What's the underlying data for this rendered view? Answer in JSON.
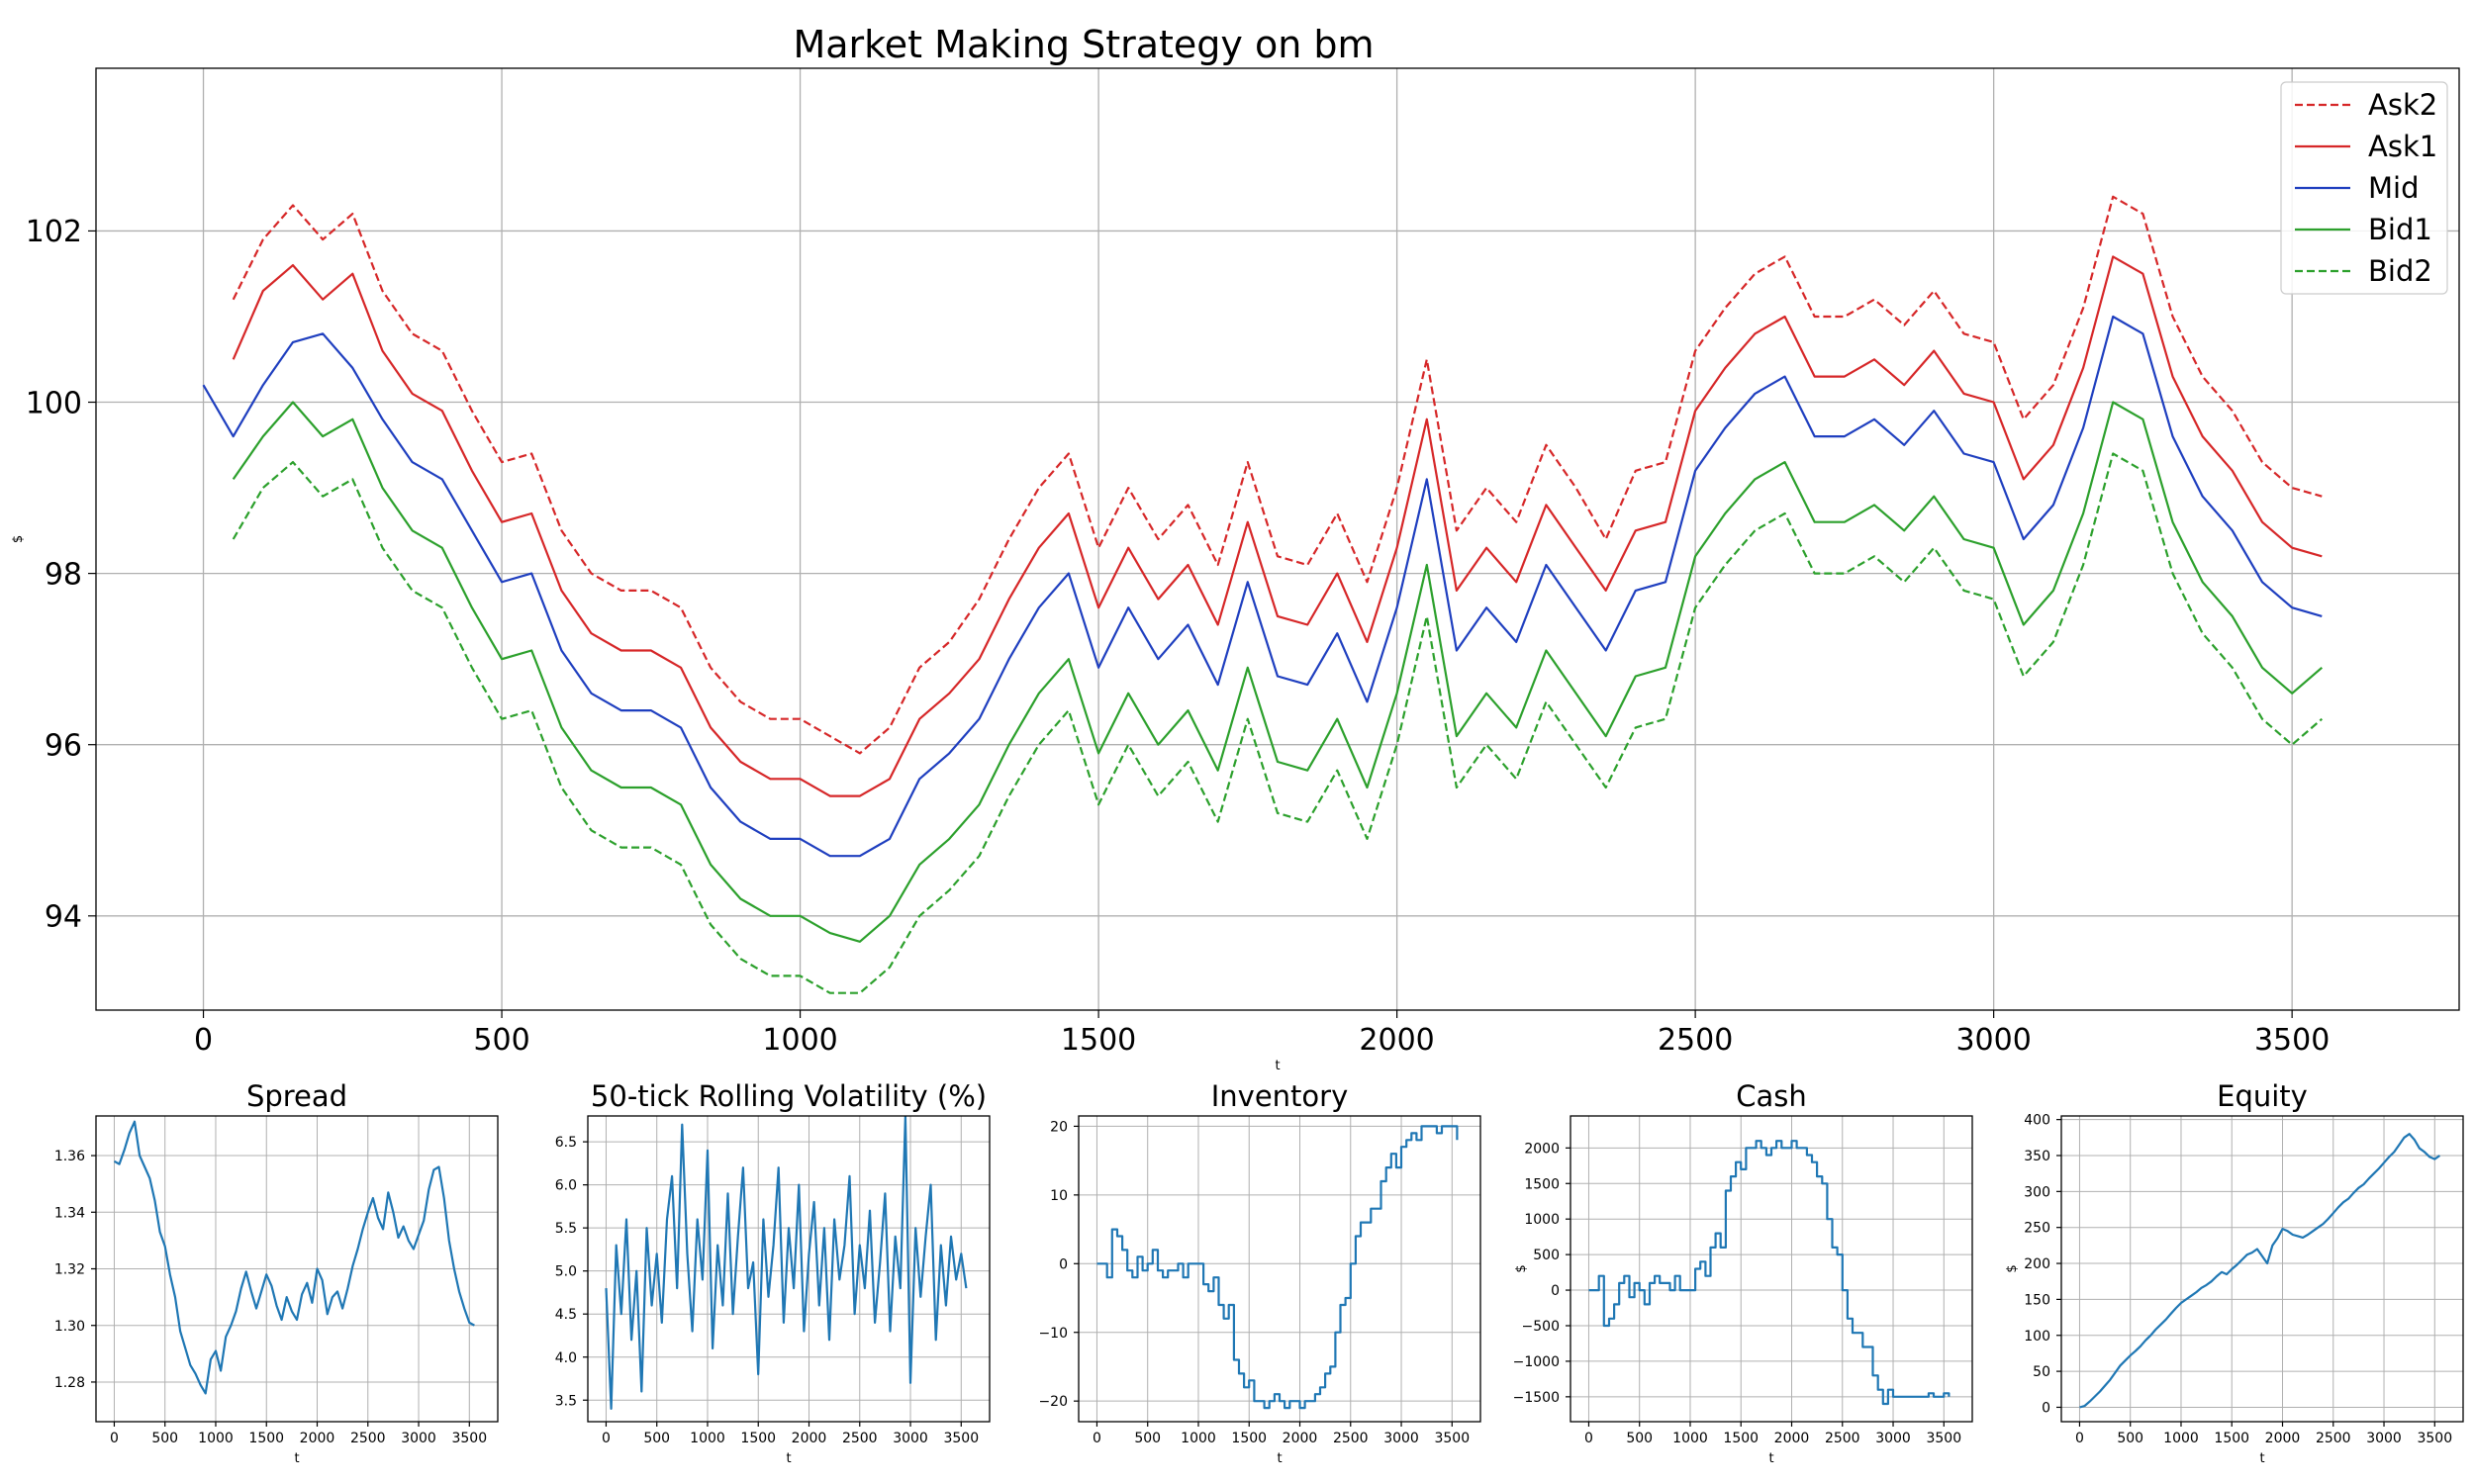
{
  "figure": {
    "title": "Market Making Strategy on bm"
  },
  "chart_data": [
    {
      "id": "main",
      "type": "line",
      "title": "Market Making Strategy on bm",
      "xlabel": "t",
      "ylabel": "$",
      "xlim": [
        -180,
        3780
      ],
      "ylim": [
        92.9,
        103.9
      ],
      "xticks": [
        0,
        500,
        1000,
        1500,
        2000,
        2500,
        3000,
        3500
      ],
      "yticks": [
        94,
        96,
        98,
        100,
        102
      ],
      "grid": true,
      "legend": "top-right",
      "x_start": 0,
      "x_step": 50,
      "series": [
        {
          "name": "Ask2",
          "color": "#d62728",
          "dash": "dashed",
          "x_start": 50,
          "values": [
            101.2,
            101.9,
            102.3,
            101.9,
            102.2,
            101.3,
            100.8,
            100.6,
            99.9,
            99.3,
            99.4,
            98.5,
            98.0,
            97.8,
            97.8,
            97.6,
            96.9,
            96.5,
            96.3,
            96.3,
            96.1,
            95.9,
            96.2,
            96.9,
            97.2,
            97.7,
            98.4,
            99.0,
            99.4,
            98.3,
            99.0,
            98.4,
            98.8,
            98.1,
            99.3,
            98.2,
            98.1,
            98.7,
            97.9,
            99.0,
            100.5,
            98.5,
            99.0,
            98.6,
            99.5,
            99.0,
            98.4,
            99.2,
            99.3,
            100.6,
            101.1,
            101.5,
            101.7,
            101.0,
            101.0,
            101.2,
            100.9,
            101.3,
            100.8,
            100.7,
            99.8,
            100.2,
            101.1,
            102.4,
            102.2,
            101.0,
            100.3,
            99.9,
            99.3,
            99.0,
            98.9
          ]
        },
        {
          "name": "Ask1",
          "color": "#d62728",
          "dash": "solid",
          "x_start": 50,
          "values": [
            100.5,
            101.3,
            101.6,
            101.2,
            101.5,
            100.6,
            100.1,
            99.9,
            99.2,
            98.6,
            98.7,
            97.8,
            97.3,
            97.1,
            97.1,
            96.9,
            96.2,
            95.8,
            95.6,
            95.6,
            95.4,
            95.4,
            95.6,
            96.3,
            96.6,
            97.0,
            97.7,
            98.3,
            98.7,
            97.6,
            98.3,
            97.7,
            98.1,
            97.4,
            98.6,
            97.5,
            97.4,
            98.0,
            97.2,
            98.3,
            99.8,
            97.8,
            98.3,
            97.9,
            98.8,
            98.3,
            97.8,
            98.5,
            98.6,
            99.9,
            100.4,
            100.8,
            101.0,
            100.3,
            100.3,
            100.5,
            100.2,
            100.6,
            100.1,
            100.0,
            99.1,
            99.5,
            100.4,
            101.7,
            101.5,
            100.3,
            99.6,
            99.2,
            98.6,
            98.3,
            98.2
          ]
        },
        {
          "name": "Mid",
          "color": "#1f3fbf",
          "dash": "solid",
          "values": [
            100.2,
            99.6,
            100.2,
            100.7,
            100.8,
            100.4,
            99.8,
            99.3,
            99.1,
            98.5,
            97.9,
            98.0,
            97.1,
            96.6,
            96.4,
            96.4,
            96.2,
            95.5,
            95.1,
            94.9,
            94.9,
            94.7,
            94.7,
            94.9,
            95.6,
            95.9,
            96.3,
            97.0,
            97.6,
            98.0,
            96.9,
            97.6,
            97.0,
            97.4,
            96.7,
            97.9,
            96.8,
            96.7,
            97.3,
            96.5,
            97.6,
            99.1,
            97.1,
            97.6,
            97.2,
            98.1,
            97.6,
            97.1,
            97.8,
            97.9,
            99.2,
            99.7,
            100.1,
            100.3,
            99.6,
            99.6,
            99.8,
            99.5,
            99.9,
            99.4,
            99.3,
            98.4,
            98.8,
            99.7,
            101.0,
            100.8,
            99.6,
            98.9,
            98.5,
            97.9,
            97.6,
            97.5
          ]
        },
        {
          "name": "Bid1",
          "color": "#2ca02c",
          "dash": "solid",
          "x_start": 50,
          "values": [
            99.1,
            99.6,
            100.0,
            99.6,
            99.8,
            99.0,
            98.5,
            98.3,
            97.6,
            97.0,
            97.1,
            96.2,
            95.7,
            95.5,
            95.5,
            95.3,
            94.6,
            94.2,
            94.0,
            94.0,
            93.8,
            93.7,
            94.0,
            94.6,
            94.9,
            95.3,
            96.0,
            96.6,
            97.0,
            95.9,
            96.6,
            96.0,
            96.4,
            95.7,
            96.9,
            95.8,
            95.7,
            96.3,
            95.5,
            96.6,
            98.1,
            96.1,
            96.6,
            96.2,
            97.1,
            96.6,
            96.1,
            96.8,
            96.9,
            98.2,
            98.7,
            99.1,
            99.3,
            98.6,
            98.6,
            98.8,
            98.5,
            98.9,
            98.4,
            98.3,
            97.4,
            97.8,
            98.7,
            100.0,
            99.8,
            98.6,
            97.9,
            97.5,
            96.9,
            96.6,
            96.9
          ]
        },
        {
          "name": "Bid2",
          "color": "#2ca02c",
          "dash": "dashed",
          "x_start": 50,
          "values": [
            98.4,
            99.0,
            99.3,
            98.9,
            99.1,
            98.3,
            97.8,
            97.6,
            96.9,
            96.3,
            96.4,
            95.5,
            95.0,
            94.8,
            94.8,
            94.6,
            93.9,
            93.5,
            93.3,
            93.3,
            93.1,
            93.1,
            93.4,
            94.0,
            94.3,
            94.7,
            95.4,
            96.0,
            96.4,
            95.3,
            96.0,
            95.4,
            95.8,
            95.1,
            96.3,
            95.2,
            95.1,
            95.7,
            94.9,
            96.0,
            97.5,
            95.5,
            96.0,
            95.6,
            96.5,
            96.0,
            95.5,
            96.2,
            96.3,
            97.6,
            98.1,
            98.5,
            98.7,
            98.0,
            98.0,
            98.2,
            97.9,
            98.3,
            97.8,
            97.7,
            96.8,
            97.2,
            98.1,
            99.4,
            99.2,
            98.0,
            97.3,
            96.9,
            96.3,
            96.0,
            96.3
          ]
        }
      ]
    },
    {
      "id": "spread",
      "type": "line",
      "title": "Spread",
      "xlabel": "t",
      "ylabel": "",
      "xlim": [
        -180,
        3780
      ],
      "ylim": [
        1.266,
        1.374
      ],
      "xticks": [
        0,
        500,
        1000,
        1500,
        2000,
        2500,
        3000,
        3500
      ],
      "yticks": [
        1.28,
        1.3,
        1.32,
        1.34,
        1.36
      ],
      "ytick_labels": [
        "1.28",
        "1.30",
        "1.32",
        "1.34",
        "1.36"
      ],
      "grid": true,
      "x_start": 0,
      "x_step": 50,
      "series": [
        {
          "color": "#1f77b4",
          "values": [
            1.358,
            1.357,
            1.362,
            1.368,
            1.372,
            1.36,
            1.356,
            1.352,
            1.344,
            1.333,
            1.328,
            1.318,
            1.31,
            1.298,
            1.292,
            1.286,
            1.283,
            1.279,
            1.276,
            1.288,
            1.291,
            1.284,
            1.296,
            1.3,
            1.305,
            1.313,
            1.319,
            1.312,
            1.306,
            1.312,
            1.318,
            1.314,
            1.307,
            1.302,
            1.31,
            1.305,
            1.302,
            1.311,
            1.315,
            1.308,
            1.32,
            1.316,
            1.304,
            1.31,
            1.312,
            1.306,
            1.313,
            1.321,
            1.327,
            1.334,
            1.34,
            1.345,
            1.338,
            1.334,
            1.347,
            1.34,
            1.331,
            1.335,
            1.33,
            1.327,
            1.332,
            1.337,
            1.348,
            1.355,
            1.356,
            1.345,
            1.33,
            1.32,
            1.312,
            1.306,
            1.301,
            1.3
          ]
        }
      ]
    },
    {
      "id": "volatility",
      "type": "line",
      "title": "50-tick Rolling Volatility (%)",
      "xlabel": "t",
      "ylabel": "",
      "xlim": [
        -180,
        3780
      ],
      "ylim": [
        3.25,
        6.8
      ],
      "xticks": [
        0,
        500,
        1000,
        1500,
        2000,
        2500,
        3000,
        3500
      ],
      "yticks": [
        3.5,
        4.0,
        4.5,
        5.0,
        5.5,
        6.0,
        6.5
      ],
      "ytick_labels": [
        "3.5",
        "4.0",
        "4.5",
        "5.0",
        "5.5",
        "6.0",
        "6.5"
      ],
      "grid": true,
      "x_start": 0,
      "x_step": 50,
      "series": [
        {
          "color": "#1f77b4",
          "values": [
            4.8,
            3.4,
            5.3,
            4.5,
            5.6,
            4.2,
            5.0,
            3.6,
            5.5,
            4.6,
            5.2,
            4.4,
            5.6,
            6.1,
            4.8,
            6.7,
            5.2,
            4.3,
            5.6,
            4.9,
            6.4,
            4.1,
            5.3,
            4.6,
            5.9,
            4.5,
            5.4,
            6.2,
            4.8,
            5.1,
            3.8,
            5.6,
            4.7,
            5.3,
            6.2,
            4.4,
            5.5,
            4.8,
            6.0,
            4.3,
            5.2,
            5.8,
            4.6,
            5.5,
            4.2,
            5.6,
            4.9,
            5.3,
            6.1,
            4.5,
            5.3,
            4.8,
            5.7,
            4.4,
            5.1,
            5.9,
            4.3,
            5.4,
            4.8,
            6.8,
            3.7,
            5.5,
            4.7,
            5.4,
            6.0,
            4.2,
            5.3,
            4.6,
            5.4,
            4.9,
            5.2,
            4.8
          ]
        }
      ]
    },
    {
      "id": "inventory",
      "type": "line",
      "title": "Inventory",
      "xlabel": "t",
      "ylabel": "",
      "xlim": [
        -180,
        3780
      ],
      "ylim": [
        -23,
        21.5
      ],
      "xticks": [
        0,
        500,
        1000,
        1500,
        2000,
        2500,
        3000,
        3500
      ],
      "yticks": [
        -20,
        -10,
        0,
        10,
        20
      ],
      "ytick_labels": [
        "−20",
        "−10",
        "0",
        "10",
        "20"
      ],
      "grid": true,
      "x_start": 0,
      "x_step": 50,
      "series": [
        {
          "color": "#1f77b4",
          "step": true,
          "values": [
            0,
            0,
            -2,
            5,
            4,
            2,
            -1,
            -2,
            1,
            -1,
            0,
            2,
            -1,
            -2,
            -1,
            -1,
            0,
            -2,
            0,
            0,
            0,
            -3,
            -4,
            -2,
            -6,
            -8,
            -6,
            -14,
            -16,
            -18,
            -17,
            -20,
            -20,
            -21,
            -20,
            -19,
            -20,
            -21,
            -20,
            -20,
            -21,
            -20,
            -20,
            -19,
            -18,
            -16,
            -15,
            -10,
            -6,
            -5,
            0,
            4,
            6,
            6,
            8,
            8,
            12,
            14,
            16,
            14,
            17,
            18,
            19,
            18,
            20,
            20,
            20,
            19,
            20,
            20,
            20,
            18
          ]
        }
      ]
    },
    {
      "id": "cash",
      "type": "line",
      "title": "Cash",
      "xlabel": "t",
      "ylabel": "$",
      "xlim": [
        -180,
        3780
      ],
      "ylim": [
        -1850,
        2450
      ],
      "xticks": [
        0,
        500,
        1000,
        1500,
        2000,
        2500,
        3000,
        3500
      ],
      "yticks": [
        -1500,
        -1000,
        -500,
        0,
        500,
        1000,
        1500,
        2000
      ],
      "ytick_labels": [
        "−1500",
        "−1000",
        "−500",
        "0",
        "500",
        "1000",
        "1500",
        "2000"
      ],
      "grid": true,
      "x_start": 0,
      "x_step": 50,
      "series": [
        {
          "color": "#1f77b4",
          "step": true,
          "values": [
            0,
            0,
            200,
            -500,
            -400,
            -200,
            100,
            200,
            -100,
            100,
            0,
            -200,
            100,
            200,
            100,
            100,
            0,
            200,
            0,
            0,
            0,
            300,
            400,
            200,
            600,
            800,
            600,
            1400,
            1600,
            1800,
            1700,
            2000,
            2000,
            2100,
            2000,
            1900,
            2000,
            2100,
            2000,
            2000,
            2100,
            2000,
            2000,
            1900,
            1800,
            1600,
            1500,
            1000,
            600,
            500,
            0,
            -400,
            -600,
            -600,
            -800,
            -800,
            -1200,
            -1400,
            -1600,
            -1400,
            -1500,
            -1500,
            -1500,
            -1500,
            -1500,
            -1500,
            -1500,
            -1450,
            -1500,
            -1500,
            -1450,
            -1500
          ]
        }
      ]
    },
    {
      "id": "equity",
      "type": "line",
      "title": "Equity",
      "xlabel": "t",
      "ylabel": "$",
      "xlim": [
        -180,
        3780
      ],
      "ylim": [
        -20,
        405
      ],
      "xticks": [
        0,
        500,
        1000,
        1500,
        2000,
        2500,
        3000,
        3500
      ],
      "yticks": [
        0,
        50,
        100,
        150,
        200,
        250,
        300,
        350,
        400
      ],
      "ytick_labels": [
        "0",
        "50",
        "100",
        "150",
        "200",
        "250",
        "300",
        "350",
        "400"
      ],
      "grid": true,
      "x_start": 0,
      "x_step": 50,
      "series": [
        {
          "color": "#1f77b4",
          "values": [
            0,
            2,
            8,
            15,
            22,
            30,
            38,
            48,
            58,
            65,
            72,
            78,
            85,
            93,
            100,
            108,
            115,
            122,
            130,
            138,
            145,
            150,
            155,
            160,
            166,
            170,
            175,
            182,
            188,
            185,
            192,
            198,
            205,
            212,
            215,
            220,
            210,
            200,
            225,
            235,
            248,
            245,
            240,
            238,
            236,
            240,
            245,
            250,
            255,
            262,
            270,
            278,
            285,
            290,
            298,
            305,
            310,
            318,
            325,
            332,
            340,
            348,
            355,
            365,
            375,
            380,
            372,
            360,
            355,
            348,
            345,
            350
          ]
        }
      ]
    }
  ]
}
